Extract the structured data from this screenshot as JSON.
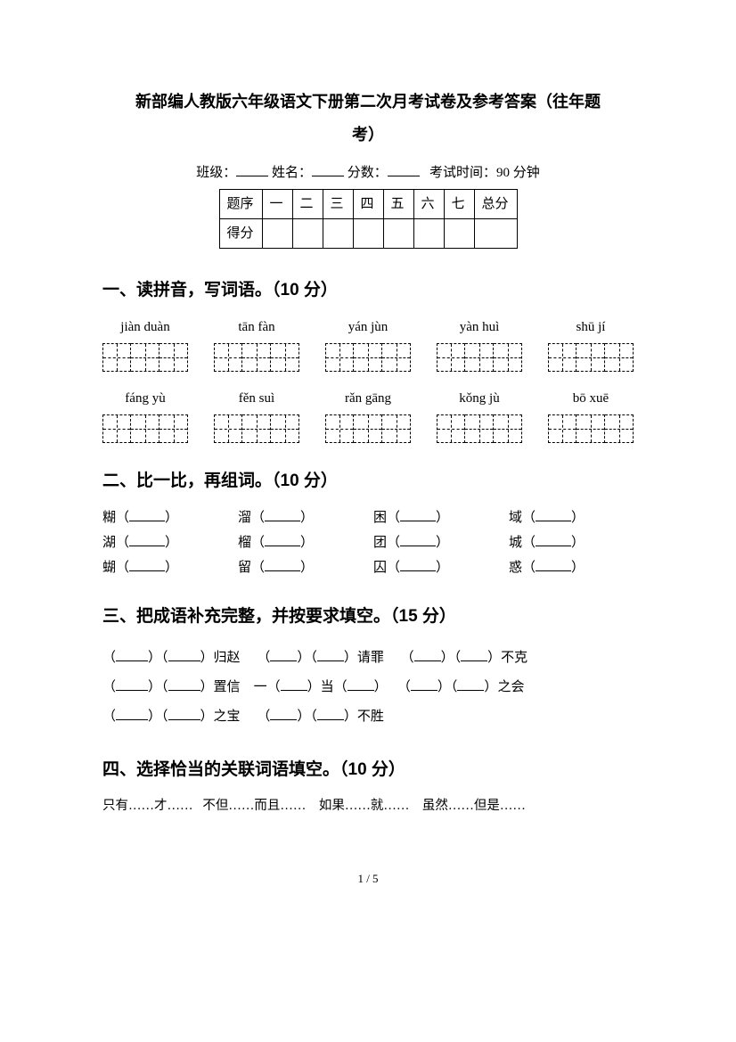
{
  "title": "新部编人教版六年级语文下册第二次月考试卷及参考答案（往年题",
  "subtitle": "考）",
  "header_labels": {
    "class": "班级：",
    "name": "姓名：",
    "score": "分数：",
    "time_label": "考试时间：",
    "time_value": "90 分钟"
  },
  "score_table": {
    "row1": [
      "题序",
      "一",
      "二",
      "三",
      "四",
      "五",
      "六",
      "七",
      "总分"
    ],
    "row2_label": "得分"
  },
  "section1_title": "一、读拼音，写词语。（10 分）",
  "pinyin_row1": [
    "jiàn duàn",
    "tān fàn",
    "yán jùn",
    "yàn huì",
    "shū jí"
  ],
  "pinyin_row2": [
    "fáng yù",
    "fěn suì",
    "rǎn gāng",
    "kǒng jù",
    "bō xuē"
  ],
  "section2_title": "二、比一比，再组词。（10 分）",
  "compare_rows": [
    [
      "糊",
      "溜",
      "困",
      "域"
    ],
    [
      "湖",
      "榴",
      "团",
      "城"
    ],
    [
      "蝴",
      "留",
      "囚",
      "惑"
    ]
  ],
  "section3_title": "三、把成语补充完整，并按要求填空。（15 分）",
  "idiom_suffix": {
    "guizhao": "归赵",
    "qingzui": "请罪",
    "buke": "不克",
    "zhixin": "置信",
    "yi": "一",
    "dang": "当",
    "zhihui": "之会",
    "zhibao": "之宝",
    "busheng": "不胜"
  },
  "section4_title": "四、选择恰当的关联词语填空。（10 分）",
  "conjunctions": [
    "只有……才……",
    "不但……而且……",
    "如果……就……",
    "虽然……但是……"
  ],
  "page_footer": "1 / 5"
}
